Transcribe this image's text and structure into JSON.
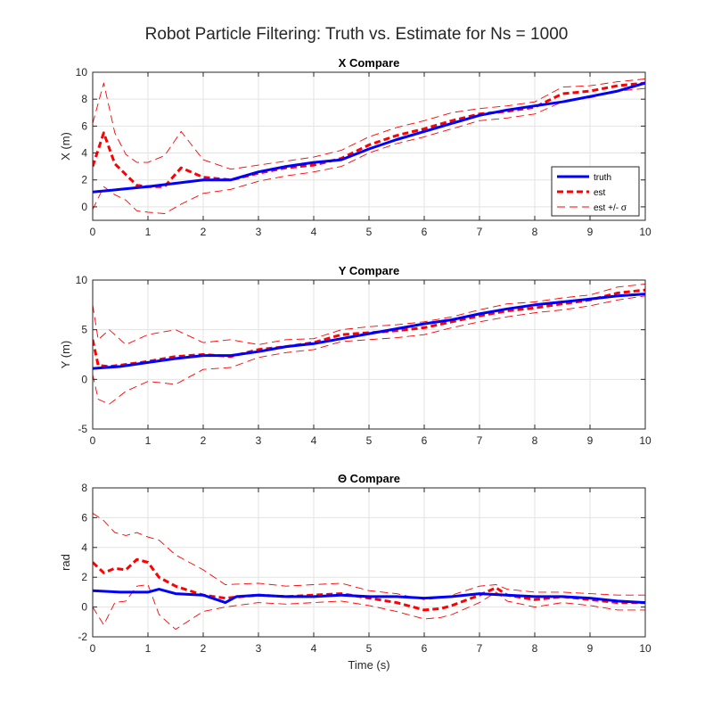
{
  "figure": {
    "title": "Robot Particle Filtering: Truth vs. Estimate for Ns = 1000"
  },
  "chart_data": [
    {
      "type": "line",
      "title": "X Compare",
      "xlabel": "",
      "ylabel": "X (m)",
      "xlim": [
        0,
        10
      ],
      "ylim": [
        -1,
        10
      ],
      "xticks": [
        0,
        1,
        2,
        3,
        4,
        5,
        6,
        7,
        8,
        9,
        10
      ],
      "yticks": [
        0,
        2,
        4,
        6,
        8,
        10
      ],
      "grid": true,
      "legend": {
        "placement": "lower-right",
        "entries": [
          "truth",
          "est",
          "est +/- σ"
        ]
      },
      "series": [
        {
          "name": "truth",
          "style": "solid",
          "color": "#0000ff",
          "x": [
            0,
            0.5,
            1,
            1.5,
            2,
            2.5,
            3,
            3.5,
            4,
            4.5,
            5,
            5.5,
            6,
            6.5,
            7,
            7.5,
            8,
            8.5,
            9,
            9.5,
            10
          ],
          "y": [
            1.1,
            1.3,
            1.5,
            1.75,
            2.0,
            2.0,
            2.6,
            3.0,
            3.3,
            3.5,
            4.3,
            5.0,
            5.6,
            6.2,
            6.8,
            7.2,
            7.5,
            7.8,
            8.2,
            8.6,
            9.2
          ]
        },
        {
          "name": "est",
          "style": "dashed",
          "color": "#ff0000",
          "x": [
            0,
            0.2,
            0.4,
            0.6,
            0.8,
            1,
            1.3,
            1.6,
            2,
            2.5,
            3,
            3.5,
            4,
            4.5,
            5,
            5.5,
            6,
            6.5,
            7,
            7.5,
            8,
            8.5,
            9,
            9.5,
            10
          ],
          "y": [
            3.0,
            5.5,
            3.2,
            2.4,
            1.6,
            1.5,
            1.5,
            2.9,
            2.2,
            2.0,
            2.5,
            2.9,
            3.1,
            3.6,
            4.6,
            5.3,
            5.8,
            6.4,
            6.9,
            7.1,
            7.4,
            8.4,
            8.6,
            9.0,
            9.2
          ]
        },
        {
          "name": "est +/- σ",
          "style": "thin-dashed",
          "color": "#ff0000",
          "x": [
            0,
            0.2,
            0.4,
            0.6,
            0.8,
            1,
            1.3,
            1.6,
            2,
            2.5,
            3,
            3.5,
            4,
            4.5,
            5,
            5.5,
            6,
            6.5,
            7,
            7.5,
            8,
            8.5,
            9,
            9.5,
            10
          ],
          "y": [
            6.2,
            9.2,
            5.5,
            3.9,
            3.3,
            3.3,
            3.8,
            5.6,
            3.5,
            2.8,
            3.1,
            3.4,
            3.7,
            4.2,
            5.2,
            5.9,
            6.4,
            7.0,
            7.3,
            7.5,
            7.8,
            8.9,
            9.0,
            9.3,
            9.5
          ]
        },
        {
          "name": "est +/- σ",
          "style": "thin-dashed",
          "color": "#ff0000",
          "x": [
            0,
            0.2,
            0.4,
            0.6,
            0.8,
            1,
            1.3,
            1.6,
            2,
            2.5,
            3,
            3.5,
            4,
            4.5,
            5,
            5.5,
            6,
            6.5,
            7,
            7.5,
            8,
            8.5,
            9,
            9.5,
            10
          ],
          "y": [
            -0.2,
            1.5,
            0.9,
            0.5,
            -0.3,
            -0.4,
            -0.5,
            0.2,
            1.0,
            1.3,
            1.9,
            2.3,
            2.6,
            3.0,
            4.0,
            4.7,
            5.2,
            5.8,
            6.4,
            6.6,
            6.9,
            7.8,
            8.1,
            8.6,
            8.8
          ]
        }
      ]
    },
    {
      "type": "line",
      "title": "Y Compare",
      "xlabel": "",
      "ylabel": "Y (m)",
      "xlim": [
        0,
        10
      ],
      "ylim": [
        -5,
        10
      ],
      "xticks": [
        0,
        1,
        2,
        3,
        4,
        5,
        6,
        7,
        8,
        9,
        10
      ],
      "yticks": [
        -5,
        0,
        5,
        10
      ],
      "grid": true,
      "series": [
        {
          "name": "truth",
          "style": "solid",
          "color": "#0000ff",
          "x": [
            0,
            0.5,
            1,
            1.5,
            2,
            2.5,
            3,
            3.5,
            4,
            4.5,
            5,
            5.5,
            6,
            6.5,
            7,
            7.5,
            8,
            8.5,
            9,
            9.5,
            10
          ],
          "y": [
            1.1,
            1.3,
            1.7,
            2.1,
            2.4,
            2.4,
            2.8,
            3.3,
            3.6,
            4.1,
            4.6,
            5.1,
            5.6,
            6.0,
            6.6,
            7.1,
            7.5,
            7.8,
            8.1,
            8.4,
            8.6
          ]
        },
        {
          "name": "est",
          "style": "dashed",
          "color": "#ff0000",
          "x": [
            0,
            0.1,
            0.3,
            0.6,
            1,
            1.5,
            2,
            2.5,
            3,
            3.5,
            4,
            4.5,
            5,
            5.5,
            6,
            6.5,
            7,
            7.5,
            8,
            8.5,
            9,
            9.5,
            10
          ],
          "y": [
            4.0,
            1.4,
            1.3,
            1.5,
            1.8,
            2.3,
            2.5,
            2.3,
            3.0,
            3.3,
            3.7,
            4.5,
            4.7,
            4.9,
            5.2,
            5.8,
            6.4,
            6.9,
            7.2,
            7.6,
            8.0,
            8.7,
            9.0
          ]
        },
        {
          "name": "est +/- σ",
          "style": "thin-dashed",
          "color": "#ff0000",
          "x": [
            0,
            0.1,
            0.3,
            0.6,
            1,
            1.5,
            2,
            2.5,
            3,
            3.5,
            4,
            4.5,
            5,
            5.5,
            6,
            6.5,
            7,
            7.5,
            8,
            8.5,
            9,
            9.5,
            10
          ],
          "y": [
            7.5,
            4.0,
            5.0,
            3.5,
            4.5,
            5.0,
            3.7,
            4.0,
            3.5,
            4.0,
            4.1,
            5.0,
            5.3,
            5.5,
            5.8,
            6.3,
            7.0,
            7.6,
            7.8,
            8.2,
            8.5,
            9.3,
            9.6
          ]
        },
        {
          "name": "est +/- σ",
          "style": "thin-dashed",
          "color": "#ff0000",
          "x": [
            0,
            0.1,
            0.3,
            0.6,
            1,
            1.5,
            2,
            2.5,
            3,
            3.5,
            4,
            4.5,
            5,
            5.5,
            6,
            6.5,
            7,
            7.5,
            8,
            8.5,
            9,
            9.5,
            10
          ],
          "y": [
            0.5,
            -2.0,
            -2.5,
            -1.2,
            -0.2,
            -0.5,
            1.0,
            1.2,
            2.2,
            2.7,
            3.0,
            3.8,
            4.0,
            4.2,
            4.5,
            5.2,
            5.8,
            6.3,
            6.7,
            7.0,
            7.4,
            8.0,
            8.4
          ]
        }
      ]
    },
    {
      "type": "line",
      "title": "Θ Compare",
      "xlabel": "Time (s)",
      "ylabel": "rad",
      "xlim": [
        0,
        10
      ],
      "ylim": [
        -2,
        8
      ],
      "xticks": [
        0,
        1,
        2,
        3,
        4,
        5,
        6,
        7,
        8,
        9,
        10
      ],
      "yticks": [
        -2,
        0,
        2,
        4,
        6,
        8
      ],
      "grid": true,
      "series": [
        {
          "name": "truth",
          "style": "solid",
          "color": "#0000ff",
          "x": [
            0,
            0.5,
            1,
            1.2,
            1.5,
            2,
            2.4,
            2.6,
            3,
            3.5,
            4,
            4.5,
            5,
            5.5,
            6,
            6.5,
            7,
            7.5,
            8,
            8.5,
            9,
            9.5,
            10
          ],
          "y": [
            1.1,
            1.0,
            1.0,
            1.2,
            0.9,
            0.8,
            0.3,
            0.7,
            0.8,
            0.7,
            0.7,
            0.8,
            0.7,
            0.7,
            0.6,
            0.7,
            0.9,
            0.8,
            0.7,
            0.7,
            0.6,
            0.4,
            0.3
          ]
        },
        {
          "name": "est",
          "style": "dashed",
          "color": "#ff0000",
          "x": [
            0,
            0.2,
            0.4,
            0.6,
            0.8,
            1,
            1.2,
            1.5,
            2,
            2.4,
            3,
            3.5,
            4,
            4.5,
            5,
            5.5,
            6,
            6.3,
            6.5,
            7,
            7.3,
            7.5,
            8,
            8.5,
            9,
            9.5,
            10
          ],
          "y": [
            3.0,
            2.3,
            2.6,
            2.5,
            3.2,
            3.0,
            2.0,
            1.4,
            0.8,
            0.6,
            0.8,
            0.7,
            0.8,
            0.9,
            0.6,
            0.3,
            -0.2,
            -0.1,
            0.1,
            0.8,
            1.3,
            0.8,
            0.5,
            0.7,
            0.5,
            0.3,
            0.3
          ]
        },
        {
          "name": "est +/- σ",
          "style": "thin-dashed",
          "color": "#ff0000",
          "x": [
            0,
            0.2,
            0.4,
            0.6,
            0.8,
            1,
            1.2,
            1.5,
            2,
            2.4,
            3,
            3.5,
            4,
            4.5,
            5,
            5.5,
            6,
            6.3,
            6.5,
            7,
            7.3,
            7.5,
            8,
            8.5,
            9,
            9.5,
            10
          ],
          "y": [
            6.3,
            5.8,
            5.0,
            4.8,
            5.0,
            4.7,
            4.5,
            3.5,
            2.5,
            1.5,
            1.6,
            1.4,
            1.5,
            1.6,
            1.1,
            0.9,
            0.5,
            0.6,
            0.8,
            1.4,
            1.5,
            1.2,
            1.0,
            1.0,
            0.9,
            0.8,
            0.8
          ]
        },
        {
          "name": "est +/- σ",
          "style": "thin-dashed",
          "color": "#ff0000",
          "x": [
            0,
            0.2,
            0.4,
            0.6,
            0.8,
            1,
            1.2,
            1.5,
            2,
            2.4,
            3,
            3.5,
            4,
            4.5,
            5,
            5.5,
            6,
            6.3,
            6.5,
            7,
            7.3,
            7.5,
            8,
            8.5,
            9,
            9.5,
            10
          ],
          "y": [
            0.0,
            -1.2,
            0.3,
            0.4,
            1.4,
            1.5,
            -0.5,
            -1.5,
            -0.3,
            0.0,
            0.3,
            0.2,
            0.3,
            0.4,
            0.1,
            -0.3,
            -0.8,
            -0.7,
            -0.5,
            0.3,
            1.0,
            0.4,
            0.0,
            0.3,
            0.1,
            -0.2,
            -0.2
          ]
        }
      ]
    }
  ]
}
